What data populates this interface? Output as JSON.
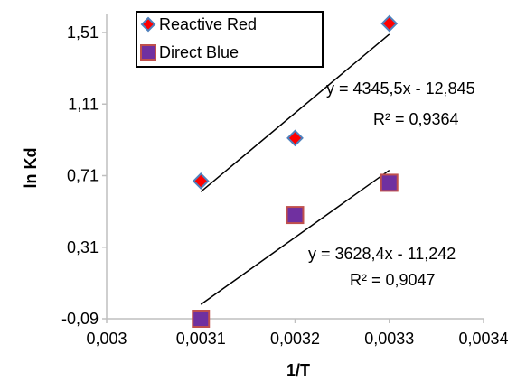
{
  "chart_data": {
    "type": "scatter",
    "xlabel": "1/T",
    "ylabel": "ln Kd",
    "xlim": [
      0.003,
      0.0034
    ],
    "ylim": [
      -0.09,
      1.6
    ],
    "x_ticks": [
      "0,003",
      "0,0031",
      "0,0032",
      "0,0033",
      "0,0034"
    ],
    "x_tick_values": [
      0.003,
      0.0031,
      0.0032,
      0.0033,
      0.0034
    ],
    "y_ticks": [
      "-0,09",
      "0,31",
      "0,71",
      "1,11",
      "1,51"
    ],
    "y_tick_values": [
      -0.09,
      0.31,
      0.71,
      1.11,
      1.51
    ],
    "grid": false,
    "legend_position": "top-left",
    "series": [
      {
        "name": "Reactive Red",
        "marker": "diamond",
        "color": "#ff0000",
        "border": "#4f81bd",
        "x": [
          0.0031,
          0.0032,
          0.0033
        ],
        "y": [
          0.68,
          0.92,
          1.56
        ],
        "trendline": {
          "x": [
            0.0031,
            0.0033
          ],
          "y": [
            0.62,
            1.5
          ]
        },
        "equation": "y = 4345,5x - 12,845",
        "r2": "R² = 0,9364"
      },
      {
        "name": "Direct Blue",
        "marker": "square",
        "color": "#7030a0",
        "border": "#c0504d",
        "x": [
          0.0031,
          0.0032,
          0.0033
        ],
        "y": [
          -0.09,
          0.49,
          0.67
        ],
        "trendline": {
          "x": [
            0.0031,
            0.0033
          ],
          "y": [
            -0.01,
            0.74
          ]
        },
        "equation": "y = 3628,4x - 11,242",
        "r2": "R² = 0,9047"
      }
    ]
  }
}
